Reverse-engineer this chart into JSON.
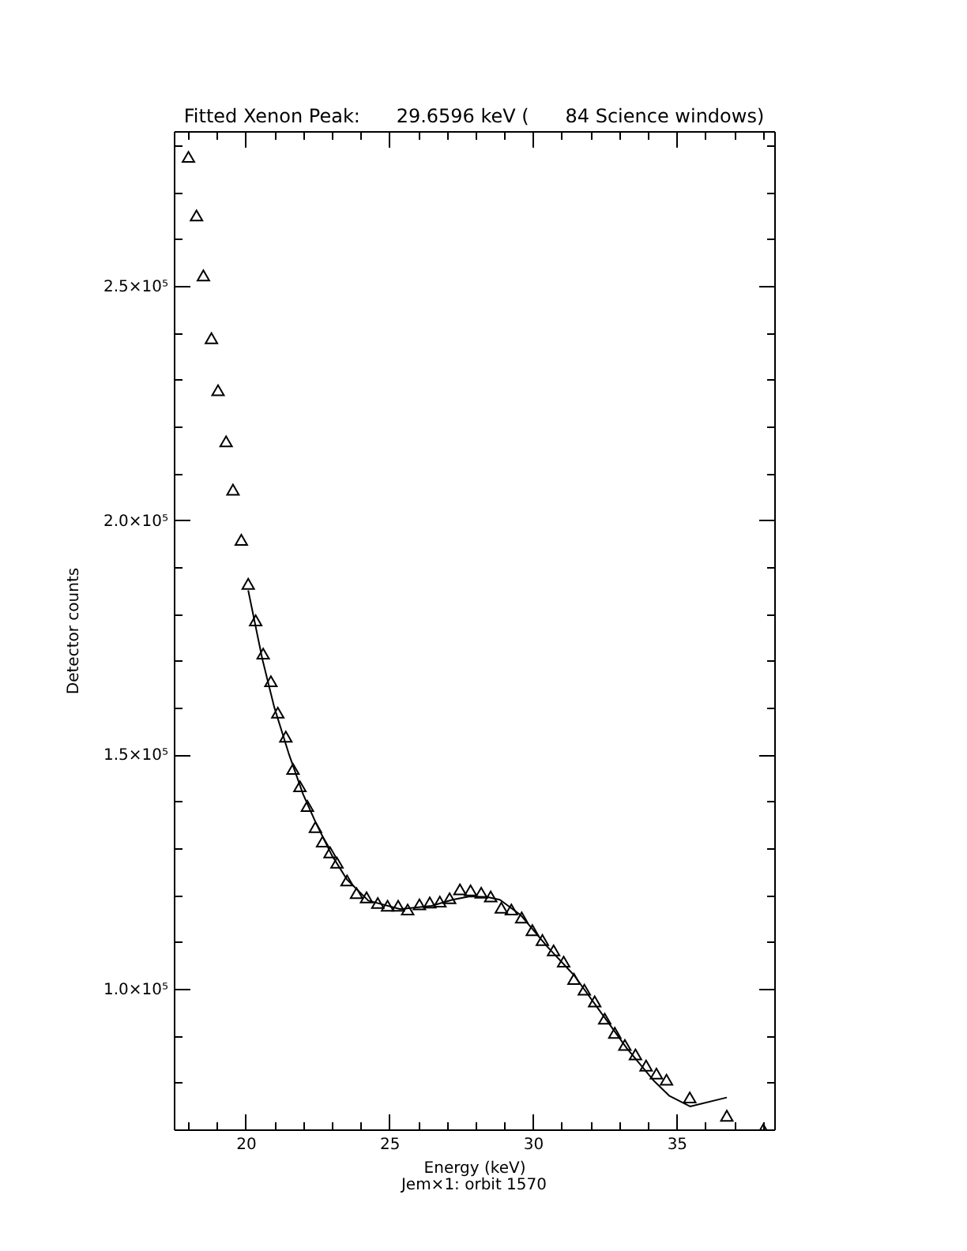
{
  "chart_data": {
    "type": "scatter",
    "title": "Fitted Xenon Peak:      29.6596 keV (      84 Science windows)",
    "xlabel": "Energy (keV)",
    "ylabel": "Detector counts",
    "annotations": [
      "Jem×1: orbit 1570"
    ],
    "xlim": [
      17.5,
      38.4
    ],
    "ylim": [
      70000,
      283000
    ],
    "xticks": [
      {
        "value": 18,
        "label": null
      },
      {
        "value": 19,
        "label": null
      },
      20,
      {
        "value": 21,
        "label": null
      },
      {
        "value": 22,
        "label": null
      },
      {
        "value": 23,
        "label": null
      },
      {
        "value": 24,
        "label": null
      },
      25,
      {
        "value": 26,
        "label": null
      },
      {
        "value": 27,
        "label": null
      },
      {
        "value": 28,
        "label": null
      },
      {
        "value": 29,
        "label": null
      },
      30,
      {
        "value": 31,
        "label": null
      },
      {
        "value": 32,
        "label": null
      },
      {
        "value": 33,
        "label": null
      },
      {
        "value": 34,
        "label": null
      },
      35,
      {
        "value": 36,
        "label": null
      },
      {
        "value": 37,
        "label": null
      },
      {
        "value": 38,
        "label": null
      }
    ],
    "yticks": [
      {
        "value": 70000,
        "label": null
      },
      {
        "value": 80000,
        "label": null
      },
      {
        "value": 90000,
        "label": null
      },
      {
        "value": 100000,
        "label": "1.0×10⁵"
      },
      {
        "value": 110000,
        "label": null
      },
      {
        "value": 120000,
        "label": null
      },
      {
        "value": 130000,
        "label": null
      },
      {
        "value": 140000,
        "label": null
      },
      {
        "value": 150000,
        "label": "1.5×10⁵"
      },
      {
        "value": 160000,
        "label": null
      },
      {
        "value": 170000,
        "label": null
      },
      {
        "value": 180000,
        "label": null
      },
      {
        "value": 190000,
        "label": null
      },
      {
        "value": 200000,
        "label": "2.0×10⁵"
      },
      {
        "value": 210000,
        "label": null
      },
      {
        "value": 220000,
        "label": null
      },
      {
        "value": 230000,
        "label": null
      },
      {
        "value": 240000,
        "label": null
      },
      {
        "value": 250000,
        "label": "2.5×10⁵"
      },
      {
        "value": 260000,
        "label": null
      },
      {
        "value": 270000,
        "label": null
      },
      {
        "value": 280000,
        "label": null
      }
    ],
    "grid": false,
    "series": [
      {
        "type": "line",
        "color": "#000000",
        "x": [
          20.09,
          20.58,
          21.0,
          21.5,
          22.0,
          22.43,
          23.0,
          23.53,
          24.27,
          25.37,
          26.47,
          27.2,
          27.8,
          28.4,
          28.85,
          29.58,
          30.5,
          31.43,
          32.35,
          33.27,
          34.19,
          34.74,
          35.47,
          36.75
        ],
        "values": [
          185000,
          170400,
          160000,
          150200,
          141500,
          135600,
          128500,
          123300,
          118800,
          117000,
          117700,
          119000,
          119700,
          119600,
          119000,
          115700,
          109000,
          102900,
          95100,
          87300,
          80500,
          77200,
          74900,
          76800
        ]
      },
      {
        "marker": "triangle",
        "color": "#000000",
        "x": [
          18.01,
          18.29,
          18.53,
          18.81,
          19.04,
          19.32,
          19.56,
          19.85,
          20.09,
          20.35,
          20.61,
          20.88,
          21.12,
          21.4,
          21.65,
          21.89,
          22.15,
          22.43,
          22.68,
          22.94,
          23.18,
          23.53,
          23.86,
          24.21,
          24.6,
          24.94,
          25.31,
          25.64,
          26.05,
          26.41,
          26.76,
          27.1,
          27.46,
          27.83,
          28.2,
          28.53,
          28.9,
          29.25,
          29.61,
          29.98,
          30.33,
          30.72,
          31.07,
          31.43,
          31.79,
          32.15,
          32.5,
          32.85,
          33.2,
          33.57,
          33.94,
          34.3,
          34.65,
          35.46,
          36.75,
          38.02
        ],
        "values": [
          277500,
          265000,
          252200,
          238800,
          227700,
          216800,
          206500,
          195800,
          186400,
          178600,
          171500,
          165600,
          158900,
          153800,
          146900,
          143200,
          139000,
          134500,
          131400,
          129100,
          126900,
          123100,
          120400,
          119500,
          118300,
          117700,
          117700,
          116900,
          118000,
          118400,
          118600,
          119300,
          121200,
          121000,
          120500,
          119700,
          117300,
          116900,
          115200,
          112500,
          110400,
          108200,
          105800,
          102100,
          99800,
          97300,
          93600,
          90600,
          88000,
          86000,
          83600,
          81900,
          80600,
          76800,
          72900,
          70000
        ]
      }
    ]
  }
}
